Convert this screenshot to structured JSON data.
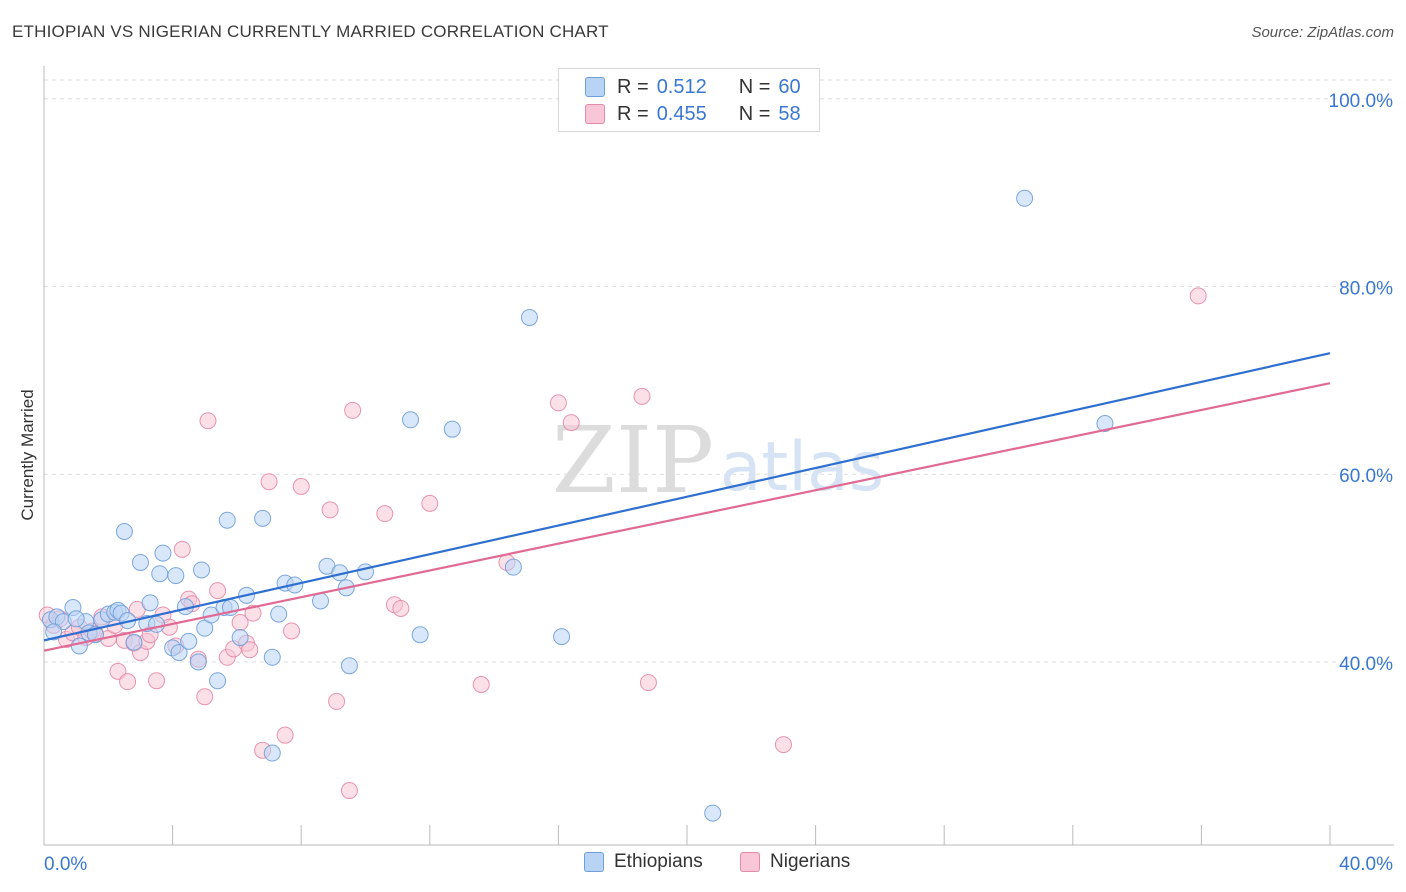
{
  "header": {
    "title": "ETHIOPIAN VS NIGERIAN CURRENTLY MARRIED CORRELATION CHART",
    "source": "Source: ZipAtlas.com"
  },
  "watermark": {
    "zip": "ZIP",
    "atlas": "atlas"
  },
  "legend_top": {
    "r_label": "R =",
    "n_label": "N =",
    "rows": [
      {
        "r": "0.512",
        "n": "60",
        "color": "#3a78d0"
      },
      {
        "r": "0.455",
        "n": "58",
        "color": "#e06a94"
      }
    ]
  },
  "legend_bottom": {
    "items": [
      "Ethiopians",
      "Nigerians"
    ]
  },
  "chart_data": {
    "type": "scatter",
    "title": "ETHIOPIAN VS NIGERIAN CURRENTLY MARRIED CORRELATION CHART",
    "xlabel": "",
    "ylabel": "Currently Married",
    "xlim": [
      0,
      40
    ],
    "ylim": [
      20.5,
      102
    ],
    "x_tick_labels": [
      "0.0%",
      "40.0%"
    ],
    "y_ticks": [
      40,
      60,
      80,
      100
    ],
    "y_tick_labels": [
      "40.0%",
      "60.0%",
      "80.0%",
      "100.0%"
    ],
    "grid": true,
    "legend_position": "top-center",
    "series": [
      {
        "name": "Ethiopians",
        "color": "#6f9fd8",
        "fill": "#b9d3f5",
        "r": 0.512,
        "n": 60,
        "trend": {
          "x": [
            0,
            40
          ],
          "y": [
            42.3,
            72.9
          ]
        },
        "points": [
          [
            0.2,
            44.5
          ],
          [
            0.4,
            44.8
          ],
          [
            0.6,
            44.3
          ],
          [
            0.9,
            45.8
          ],
          [
            1.1,
            41.7
          ],
          [
            1.3,
            44.3
          ],
          [
            1.4,
            43.1
          ],
          [
            1.6,
            42.9
          ],
          [
            1.8,
            44.5
          ],
          [
            2.0,
            45.1
          ],
          [
            2.2,
            45.3
          ],
          [
            2.3,
            45.5
          ],
          [
            2.4,
            45.2
          ],
          [
            2.5,
            53.9
          ],
          [
            2.6,
            44.4
          ],
          [
            2.8,
            42.1
          ],
          [
            3.0,
            50.6
          ],
          [
            3.2,
            44.1
          ],
          [
            3.3,
            46.3
          ],
          [
            3.5,
            44.0
          ],
          [
            3.6,
            49.4
          ],
          [
            3.7,
            51.6
          ],
          [
            4.0,
            41.5
          ],
          [
            4.1,
            49.2
          ],
          [
            4.2,
            41.0
          ],
          [
            4.4,
            45.9
          ],
          [
            4.5,
            42.2
          ],
          [
            4.8,
            40.0
          ],
          [
            4.9,
            49.8
          ],
          [
            5.0,
            43.6
          ],
          [
            5.2,
            45.0
          ],
          [
            5.4,
            38.0
          ],
          [
            5.6,
            45.8
          ],
          [
            5.7,
            55.1
          ],
          [
            5.8,
            45.8
          ],
          [
            6.1,
            42.6
          ],
          [
            6.3,
            47.1
          ],
          [
            6.8,
            55.3
          ],
          [
            7.1,
            30.3
          ],
          [
            7.1,
            40.5
          ],
          [
            7.3,
            45.1
          ],
          [
            7.5,
            48.4
          ],
          [
            7.8,
            48.2
          ],
          [
            8.6,
            46.5
          ],
          [
            8.8,
            50.2
          ],
          [
            9.2,
            49.5
          ],
          [
            9.4,
            47.9
          ],
          [
            9.5,
            39.6
          ],
          [
            10.0,
            49.6
          ],
          [
            11.4,
            65.8
          ],
          [
            11.7,
            42.9
          ],
          [
            12.7,
            64.8
          ],
          [
            14.6,
            50.1
          ],
          [
            15.1,
            76.7
          ],
          [
            16.1,
            42.7
          ],
          [
            20.8,
            23.9
          ],
          [
            30.5,
            89.4
          ],
          [
            33.0,
            65.4
          ],
          [
            0.3,
            43.2
          ],
          [
            1.0,
            44.6
          ]
        ]
      },
      {
        "name": "Nigerians",
        "color": "#e58aa9",
        "fill": "#f8c6d6",
        "r": 0.455,
        "n": 58,
        "trend": {
          "x": [
            0,
            40
          ],
          "y": [
            41.2,
            69.7
          ]
        },
        "points": [
          [
            0.1,
            45.0
          ],
          [
            0.3,
            43.9
          ],
          [
            0.5,
            44.6
          ],
          [
            0.7,
            42.4
          ],
          [
            0.9,
            43.1
          ],
          [
            1.1,
            43.7
          ],
          [
            1.3,
            42.6
          ],
          [
            1.5,
            43.3
          ],
          [
            1.6,
            43.0
          ],
          [
            1.8,
            44.8
          ],
          [
            2.0,
            42.5
          ],
          [
            2.2,
            43.9
          ],
          [
            2.3,
            39.0
          ],
          [
            2.5,
            42.3
          ],
          [
            2.6,
            37.9
          ],
          [
            2.8,
            42.0
          ],
          [
            2.9,
            45.6
          ],
          [
            3.0,
            41.0
          ],
          [
            3.2,
            42.2
          ],
          [
            3.3,
            42.9
          ],
          [
            3.5,
            38.0
          ],
          [
            3.7,
            45.0
          ],
          [
            3.9,
            43.7
          ],
          [
            4.1,
            41.7
          ],
          [
            4.3,
            52.0
          ],
          [
            4.5,
            46.7
          ],
          [
            4.6,
            46.2
          ],
          [
            4.8,
            40.3
          ],
          [
            5.0,
            36.3
          ],
          [
            5.1,
            65.7
          ],
          [
            5.4,
            47.6
          ],
          [
            5.7,
            40.5
          ],
          [
            5.9,
            41.4
          ],
          [
            6.1,
            44.2
          ],
          [
            6.3,
            42.0
          ],
          [
            6.4,
            41.3
          ],
          [
            6.5,
            45.2
          ],
          [
            6.8,
            30.6
          ],
          [
            7.0,
            59.2
          ],
          [
            7.5,
            32.2
          ],
          [
            7.7,
            43.3
          ],
          [
            8.0,
            58.7
          ],
          [
            8.9,
            56.2
          ],
          [
            9.1,
            35.8
          ],
          [
            9.5,
            26.3
          ],
          [
            9.6,
            66.8
          ],
          [
            10.6,
            55.8
          ],
          [
            10.9,
            46.1
          ],
          [
            11.1,
            45.7
          ],
          [
            12.0,
            56.9
          ],
          [
            13.6,
            37.6
          ],
          [
            14.4,
            50.6
          ],
          [
            16.0,
            67.6
          ],
          [
            16.4,
            65.5
          ],
          [
            18.6,
            68.3
          ],
          [
            18.8,
            37.8
          ],
          [
            23.0,
            31.2
          ],
          [
            35.9,
            79.0
          ]
        ]
      }
    ]
  }
}
